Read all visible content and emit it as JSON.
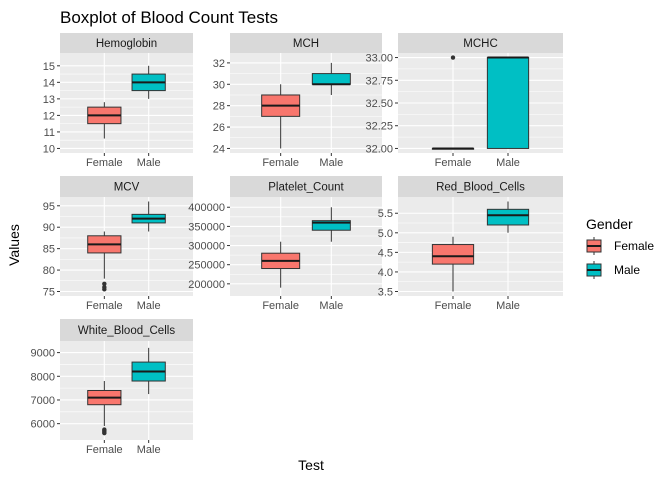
{
  "chart_data": {
    "type": "boxplot",
    "title": "Boxplot of Blood Count Tests",
    "xlabel": "Test",
    "ylabel": "Values",
    "facet_layout": "3x3 wrap, free y scales",
    "grid": true,
    "legend": {
      "title": "Gender",
      "placement": "right",
      "entries": [
        {
          "label": "Female",
          "color": "#F8766D"
        },
        {
          "label": "Male",
          "color": "#00BFC4"
        }
      ]
    },
    "categories": [
      "Female",
      "Male"
    ],
    "colors": {
      "Female": "#F8766D",
      "Male": "#00BFC4"
    },
    "panels": [
      {
        "name": "Hemoglobin",
        "ylim": [
          10,
          15.5
        ],
        "yticks": [
          10,
          11,
          12,
          13,
          14,
          15
        ],
        "ytick_labels": [
          "10",
          "11",
          "12",
          "13",
          "14",
          "15"
        ],
        "boxes": [
          {
            "group": "Female",
            "min": 10.6,
            "q1": 11.5,
            "median": 12.0,
            "q3": 12.5,
            "max": 12.8,
            "outliers": []
          },
          {
            "group": "Male",
            "min": 13.0,
            "q1": 13.5,
            "median": 14.0,
            "q3": 14.5,
            "max": 15.0,
            "outliers": []
          }
        ]
      },
      {
        "name": "MCH",
        "ylim": [
          24,
          32.5
        ],
        "yticks": [
          24,
          26,
          28,
          30,
          32
        ],
        "ytick_labels": [
          "24",
          "26",
          "28",
          "30",
          "32"
        ],
        "boxes": [
          {
            "group": "Female",
            "min": 24.0,
            "q1": 27.0,
            "median": 28.0,
            "q3": 29.0,
            "max": 30.0,
            "outliers": []
          },
          {
            "group": "Male",
            "min": 29.0,
            "q1": 30.0,
            "median": 30.0,
            "q3": 31.0,
            "max": 32.0,
            "outliers": []
          }
        ]
      },
      {
        "name": "MCHC",
        "ylim": [
          32.0,
          33.0
        ],
        "yticks": [
          32.0,
          32.25,
          32.5,
          32.75,
          33.0
        ],
        "ytick_labels": [
          "32.00",
          "32.25",
          "32.50",
          "32.75",
          "33.00"
        ],
        "boxes": [
          {
            "group": "Female",
            "min": 32.0,
            "q1": 32.0,
            "median": 32.0,
            "q3": 32.0,
            "max": 32.0,
            "outliers": [
              33.0
            ]
          },
          {
            "group": "Male",
            "min": 32.0,
            "q1": 32.0,
            "median": 33.0,
            "q3": 33.0,
            "max": 33.0,
            "outliers": []
          }
        ]
      },
      {
        "name": "MCV",
        "ylim": [
          75,
          96
        ],
        "yticks": [
          75,
          80,
          85,
          90,
          95
        ],
        "ytick_labels": [
          "75",
          "80",
          "85",
          "90",
          "95"
        ],
        "boxes": [
          {
            "group": "Female",
            "min": 78.0,
            "q1": 84.0,
            "median": 86.0,
            "q3": 88.0,
            "max": 89.0,
            "outliers": [
              75.5,
              76.0,
              76.8
            ]
          },
          {
            "group": "Male",
            "min": 89.0,
            "q1": 91.0,
            "median": 92.0,
            "q3": 93.0,
            "max": 96.0,
            "outliers": []
          }
        ]
      },
      {
        "name": "Platelet_Count",
        "ylim": [
          180000,
          415000
        ],
        "yticks": [
          200000,
          250000,
          300000,
          350000,
          400000
        ],
        "ytick_labels": [
          "200000",
          "250000",
          "300000",
          "350000",
          "400000"
        ],
        "boxes": [
          {
            "group": "Female",
            "min": 190000,
            "q1": 240000,
            "median": 260000,
            "q3": 280000,
            "max": 310000,
            "outliers": []
          },
          {
            "group": "Male",
            "min": 310000,
            "q1": 340000,
            "median": 360000,
            "q3": 365000,
            "max": 400000,
            "outliers": []
          }
        ]
      },
      {
        "name": "Red_Blood_Cells",
        "ylim": [
          3.5,
          5.8
        ],
        "yticks": [
          3.5,
          4.0,
          4.5,
          5.0,
          5.5
        ],
        "ytick_labels": [
          "3.5",
          "4.0",
          "4.5",
          "5.0",
          "5.5"
        ],
        "boxes": [
          {
            "group": "Female",
            "min": 3.5,
            "q1": 4.2,
            "median": 4.4,
            "q3": 4.7,
            "max": 4.9,
            "outliers": []
          },
          {
            "group": "Male",
            "min": 5.0,
            "q1": 5.2,
            "median": 5.45,
            "q3": 5.6,
            "max": 5.8,
            "outliers": []
          }
        ]
      },
      {
        "name": "White_Blood_Cells",
        "ylim": [
          5500,
          9300
        ],
        "yticks": [
          6000,
          7000,
          8000,
          9000
        ],
        "ytick_labels": [
          "6000",
          "7000",
          "8000",
          "9000"
        ],
        "boxes": [
          {
            "group": "Female",
            "min": 5900,
            "q1": 6800,
            "median": 7100,
            "q3": 7400,
            "max": 7800,
            "outliers": [
              5600,
              5650,
              5700,
              5750
            ]
          },
          {
            "group": "Male",
            "min": 7250,
            "q1": 7800,
            "median": 8200,
            "q3": 8600,
            "max": 9200,
            "outliers": []
          }
        ]
      }
    ]
  }
}
